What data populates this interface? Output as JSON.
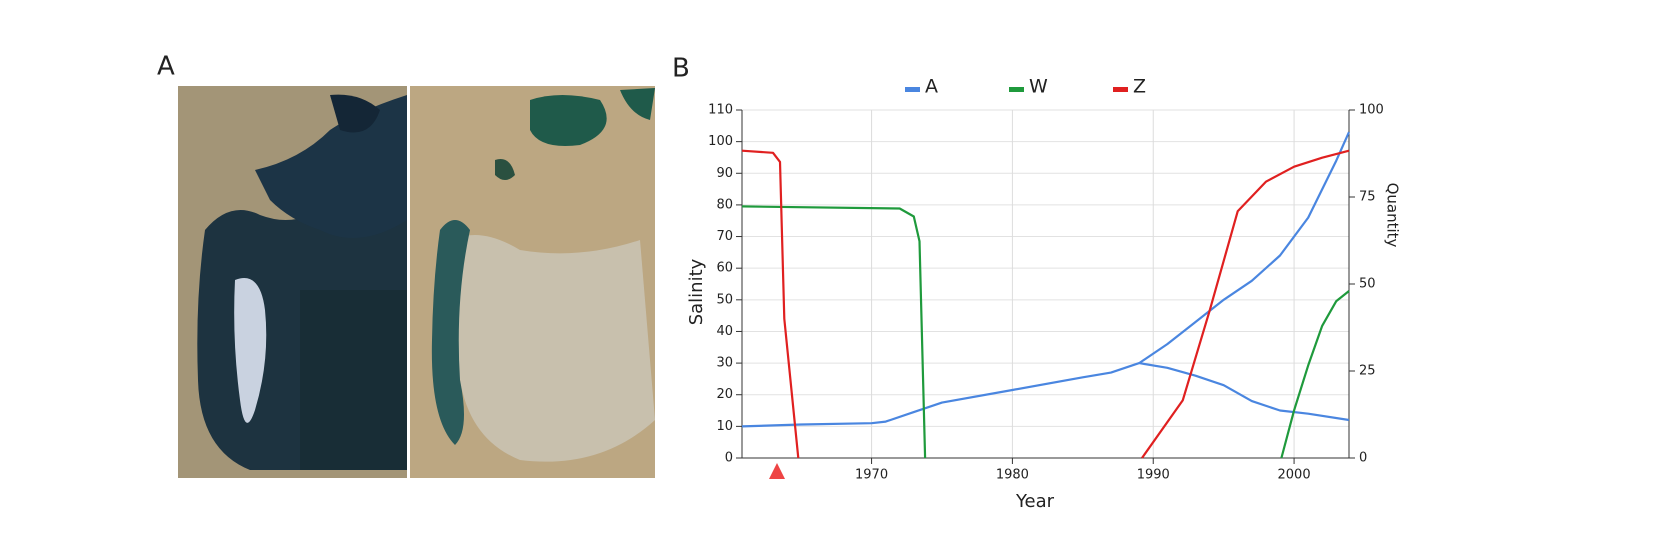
{
  "panel_labels": [
    "A",
    "B"
  ],
  "chart_data": {
    "type": "line",
    "xlabel": "Year",
    "ylabel": "Salinity",
    "y2label": "Quantity",
    "xlim": [
      1960.8,
      2003.9
    ],
    "xticks": [
      1970,
      1980,
      1990,
      2000
    ],
    "ylim": [
      0,
      110
    ],
    "yticks": [
      0,
      10,
      20,
      30,
      40,
      50,
      60,
      70,
      80,
      90,
      100,
      110
    ],
    "y2lim": [
      0,
      100
    ],
    "y2ticks": [
      0,
      25,
      50,
      75,
      100
    ],
    "grid": true,
    "series": [
      {
        "name": "A",
        "color": "#4a86e0",
        "x": [
          1960.8,
          1965,
          1970,
          1971,
          1973,
          1975,
          1980,
          1985,
          1987,
          1989,
          1991,
          1993,
          1995,
          1997,
          1999,
          2001,
          2003,
          2003.9,
          null,
          1989,
          1991,
          1993,
          1995,
          1997,
          1999,
          2001,
          2003.9
        ],
        "values": [
          10,
          10.6,
          11,
          11.5,
          14.5,
          17.5,
          21.5,
          25.5,
          27,
          30,
          36,
          43,
          50,
          56,
          64,
          76,
          94,
          103,
          null,
          30,
          28.5,
          26,
          23,
          18,
          15,
          14,
          12
        ]
      },
      {
        "name": "W",
        "color": "#1f9a3c",
        "axis": "y2",
        "x": [
          1960.8,
          1972,
          1973,
          1973.4,
          1973.8,
          null,
          1999.1,
          2000,
          2001,
          2002,
          2003,
          2003.9
        ],
        "values": [
          72.3,
          71.7,
          69.4,
          62.3,
          0,
          null,
          0,
          13.7,
          26.6,
          38,
          45.1,
          48
        ]
      },
      {
        "name": "Z",
        "color": "#e02020",
        "axis": "y2",
        "x": [
          1960.8,
          1963,
          1963.5,
          1963.8,
          1964.8,
          null,
          1989.2,
          1992.1,
          1994,
          1996,
          1998,
          2000,
          2002,
          2003.9
        ],
        "values": [
          88.3,
          87.7,
          85.1,
          40,
          0,
          null,
          0,
          16.6,
          42.3,
          70.9,
          79.4,
          83.7,
          86.3,
          88.3
        ]
      }
    ]
  }
}
